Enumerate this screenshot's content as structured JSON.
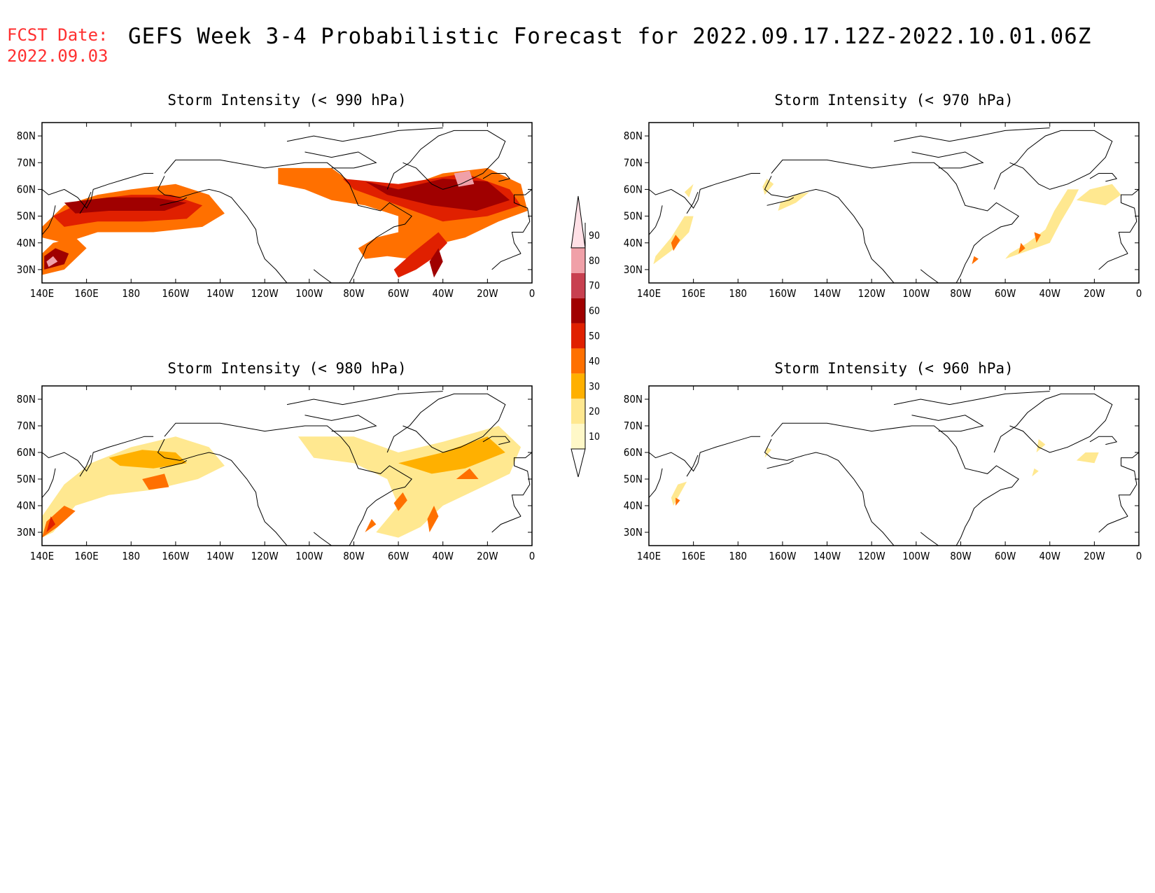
{
  "header": {
    "fcst_label": "FCST Date:",
    "fcst_date": "2022.09.03",
    "title": "GEFS Week 3-4 Probabilistic Forecast for 2022.09.17.12Z-2022.10.01.06Z"
  },
  "axes": {
    "lon_labels": [
      "140E",
      "160E",
      "180",
      "160W",
      "140W",
      "120W",
      "100W",
      "80W",
      "60W",
      "40W",
      "20W",
      "0"
    ],
    "lat_labels": [
      "80N",
      "70N",
      "60N",
      "50N",
      "40N",
      "30N"
    ]
  },
  "colorbar": {
    "levels": [
      "10",
      "20",
      "30",
      "40",
      "50",
      "60",
      "70",
      "80",
      "90"
    ],
    "colors": [
      "#fff8c8",
      "#ffe890",
      "#ffb000",
      "#ff7000",
      "#e02000",
      "#a00000",
      "#c84050",
      "#f0a0a8",
      "#ffe0e6"
    ]
  },
  "panels": [
    {
      "id": "p990",
      "title": "Storm Intensity (< 990 hPa)",
      "regions": [
        {
          "c": 3,
          "pts": [
            [
              140,
              46
            ],
            [
              150,
              54
            ],
            [
              165,
              58
            ],
            [
              180,
              60
            ],
            [
              200,
              62
            ],
            [
              215,
              58
            ],
            [
              222,
              51
            ],
            [
              212,
              46
            ],
            [
              190,
              44
            ],
            [
              165,
              44
            ],
            [
              150,
              40
            ],
            [
              140,
              42
            ]
          ]
        },
        {
          "c": 4,
          "pts": [
            [
              145,
              50
            ],
            [
              160,
              56
            ],
            [
              180,
              58
            ],
            [
              198,
              58
            ],
            [
              212,
              54
            ],
            [
              205,
              49
            ],
            [
              185,
              48
            ],
            [
              165,
              48
            ],
            [
              150,
              46
            ]
          ]
        },
        {
          "c": 5,
          "pts": [
            [
              150,
              55
            ],
            [
              170,
              57
            ],
            [
              190,
              57
            ],
            [
              205,
              55
            ],
            [
              195,
              52
            ],
            [
              170,
              52
            ],
            [
              155,
              51
            ]
          ]
        },
        {
          "c": 3,
          "pts": [
            [
              140,
              28
            ],
            [
              150,
              30
            ],
            [
              160,
              38
            ],
            [
              155,
              42
            ],
            [
              145,
              40
            ],
            [
              140,
              36
            ]
          ]
        },
        {
          "c": 5,
          "pts": [
            [
              141,
              30
            ],
            [
              150,
              32
            ],
            [
              152,
              36
            ],
            [
              146,
              38
            ],
            [
              141,
              35
            ]
          ]
        },
        {
          "c": 7,
          "pts": [
            [
              143,
              31
            ],
            [
              147,
              33
            ],
            [
              145,
              35
            ],
            [
              142,
              33
            ]
          ]
        },
        {
          "c": 3,
          "pts": [
            [
              246,
              68
            ],
            [
              270,
              68
            ],
            [
              280,
              62
            ],
            [
              300,
              60
            ],
            [
              320,
              66
            ],
            [
              340,
              68
            ],
            [
              355,
              62
            ],
            [
              358,
              52
            ],
            [
              345,
              48
            ],
            [
              330,
              42
            ],
            [
              320,
              40
            ],
            [
              312,
              36
            ],
            [
              305,
              34
            ],
            [
              295,
              35
            ],
            [
              285,
              34
            ],
            [
              282,
              38
            ],
            [
              290,
              42
            ],
            [
              300,
              44
            ],
            [
              300,
              50
            ],
            [
              285,
              54
            ],
            [
              270,
              56
            ],
            [
              258,
              60
            ],
            [
              246,
              62
            ]
          ]
        },
        {
          "c": 4,
          "pts": [
            [
              275,
              64
            ],
            [
              300,
              62
            ],
            [
              330,
              66
            ],
            [
              350,
              60
            ],
            [
              355,
              54
            ],
            [
              340,
              50
            ],
            [
              320,
              48
            ],
            [
              300,
              54
            ],
            [
              280,
              60
            ]
          ]
        },
        {
          "c": 5,
          "pts": [
            [
              285,
              63
            ],
            [
              300,
              60
            ],
            [
              320,
              64
            ],
            [
              340,
              63
            ],
            [
              350,
              56
            ],
            [
              335,
              52
            ],
            [
              315,
              54
            ],
            [
              295,
              58
            ]
          ]
        },
        {
          "c": 7,
          "pts": [
            [
              325,
              66
            ],
            [
              332,
              67
            ],
            [
              334,
              62
            ],
            [
              327,
              61
            ]
          ]
        },
        {
          "c": 4,
          "pts": [
            [
              298,
              30
            ],
            [
              306,
              36
            ],
            [
              312,
              40
            ],
            [
              318,
              44
            ],
            [
              322,
              40
            ],
            [
              315,
              34
            ],
            [
              308,
              30
            ],
            [
              300,
              27
            ]
          ]
        },
        {
          "c": 5,
          "pts": [
            [
              316,
              27
            ],
            [
              320,
              33
            ],
            [
              318,
              38
            ],
            [
              314,
              33
            ]
          ]
        }
      ]
    },
    {
      "id": "p970",
      "title": "Storm Intensity (< 970 hPa)",
      "regions": [
        {
          "c": 1,
          "pts": [
            [
              142,
              32
            ],
            [
              150,
              37
            ],
            [
              158,
              44
            ],
            [
              160,
              50
            ],
            [
              156,
              50
            ],
            [
              150,
              42
            ],
            [
              143,
              35
            ]
          ]
        },
        {
          "c": 3,
          "pts": [
            [
              151,
              37
            ],
            [
              154,
              41
            ],
            [
              152,
              43
            ],
            [
              150,
              40
            ]
          ]
        },
        {
          "c": 1,
          "pts": [
            [
              156,
              59
            ],
            [
              160,
              62
            ],
            [
              158,
              57
            ]
          ]
        },
        {
          "c": 1,
          "pts": [
            [
              192,
              58
            ],
            [
              196,
              62
            ],
            [
              193,
              64
            ],
            [
              191,
              61
            ]
          ]
        },
        {
          "c": 1,
          "pts": [
            [
              198,
              52
            ],
            [
              206,
              55
            ],
            [
              212,
              59
            ],
            [
              206,
              58
            ],
            [
              199,
              55
            ]
          ]
        },
        {
          "c": 1,
          "pts": [
            [
              300,
              34
            ],
            [
              310,
              37
            ],
            [
              320,
              40
            ],
            [
              325,
              48
            ],
            [
              330,
              55
            ],
            [
              333,
              60
            ],
            [
              328,
              60
            ],
            [
              322,
              52
            ],
            [
              318,
              45
            ],
            [
              310,
              40
            ],
            [
              302,
              36
            ]
          ]
        },
        {
          "c": 3,
          "pts": [
            [
              306,
              36
            ],
            [
              309,
              38
            ],
            [
              307,
              40
            ]
          ]
        },
        {
          "c": 3,
          "pts": [
            [
              314,
              40
            ],
            [
              316,
              43
            ],
            [
              313,
              44
            ]
          ]
        },
        {
          "c": 3,
          "pts": [
            [
              285,
              32
            ],
            [
              288,
              34
            ],
            [
              286,
              35
            ]
          ]
        },
        {
          "c": 1,
          "pts": [
            [
              332,
              56
            ],
            [
              345,
              54
            ],
            [
              352,
              58
            ],
            [
              348,
              62
            ],
            [
              338,
              60
            ]
          ]
        }
      ]
    },
    {
      "id": "p980",
      "title": "Storm Intensity (< 980 hPa)",
      "regions": [
        {
          "c": 1,
          "pts": [
            [
              140,
              36
            ],
            [
              150,
              48
            ],
            [
              162,
              56
            ],
            [
              180,
              62
            ],
            [
              200,
              66
            ],
            [
              215,
              62
            ],
            [
              222,
              55
            ],
            [
              210,
              50
            ],
            [
              190,
              46
            ],
            [
              170,
              44
            ],
            [
              155,
              40
            ],
            [
              145,
              30
            ],
            [
              140,
              28
            ]
          ]
        },
        {
          "c": 2,
          "pts": [
            [
              170,
              58
            ],
            [
              185,
              61
            ],
            [
              200,
              60
            ],
            [
              205,
              56
            ],
            [
              190,
              54
            ],
            [
              175,
              55
            ]
          ]
        },
        {
          "c": 3,
          "pts": [
            [
              185,
              50
            ],
            [
              195,
              52
            ],
            [
              197,
              47
            ],
            [
              188,
              46
            ]
          ]
        },
        {
          "c": 3,
          "pts": [
            [
              140,
              28
            ],
            [
              147,
              32
            ],
            [
              155,
              38
            ],
            [
              150,
              40
            ],
            [
              142,
              34
            ]
          ]
        },
        {
          "c": 4,
          "pts": [
            [
              142,
              30
            ],
            [
              146,
              33
            ],
            [
              144,
              36
            ]
          ]
        },
        {
          "c": 1,
          "pts": [
            [
              255,
              66
            ],
            [
              280,
              66
            ],
            [
              300,
              60
            ],
            [
              320,
              64
            ],
            [
              345,
              70
            ],
            [
              355,
              62
            ],
            [
              350,
              52
            ],
            [
              335,
              46
            ],
            [
              320,
              40
            ],
            [
              310,
              32
            ],
            [
              300,
              28
            ],
            [
              290,
              30
            ],
            [
              300,
              40
            ],
            [
              295,
              50
            ],
            [
              280,
              56
            ],
            [
              262,
              58
            ]
          ]
        },
        {
          "c": 2,
          "pts": [
            [
              300,
              56
            ],
            [
              320,
              60
            ],
            [
              340,
              66
            ],
            [
              348,
              60
            ],
            [
              330,
              54
            ],
            [
              315,
              52
            ]
          ]
        },
        {
          "c": 3,
          "pts": [
            [
              326,
              50
            ],
            [
              332,
              54
            ],
            [
              336,
              50
            ]
          ]
        },
        {
          "c": 3,
          "pts": [
            [
              300,
              38
            ],
            [
              304,
              42
            ],
            [
              302,
              45
            ],
            [
              298,
              41
            ]
          ]
        },
        {
          "c": 3,
          "pts": [
            [
              314,
              30
            ],
            [
              318,
              36
            ],
            [
              316,
              40
            ],
            [
              313,
              35
            ]
          ]
        },
        {
          "c": 3,
          "pts": [
            [
              285,
              30
            ],
            [
              290,
              33
            ],
            [
              288,
              35
            ]
          ]
        }
      ]
    },
    {
      "id": "p960",
      "title": "Storm Intensity (< 960 hPa)",
      "regions": [
        {
          "c": 1,
          "pts": [
            [
              151,
              40
            ],
            [
              155,
              46
            ],
            [
              157,
              49
            ],
            [
              153,
              48
            ],
            [
              150,
              43
            ]
          ]
        },
        {
          "c": 3,
          "pts": [
            [
              152,
              40
            ],
            [
              154,
              42
            ],
            [
              152,
              43
            ]
          ]
        },
        {
          "c": 1,
          "pts": [
            [
              192,
              58
            ],
            [
              195,
              61
            ],
            [
              193,
              62
            ]
          ]
        },
        {
          "c": 1,
          "pts": [
            [
              314,
              60
            ],
            [
              318,
              63
            ],
            [
              315,
              65
            ]
          ]
        },
        {
          "c": 1,
          "pts": [
            [
              332,
              57
            ],
            [
              340,
              56
            ],
            [
              342,
              60
            ],
            [
              336,
              60
            ]
          ]
        },
        {
          "c": 1,
          "pts": [
            [
              312,
              51
            ],
            [
              315,
              53
            ],
            [
              313,
              54
            ]
          ]
        }
      ]
    }
  ]
}
